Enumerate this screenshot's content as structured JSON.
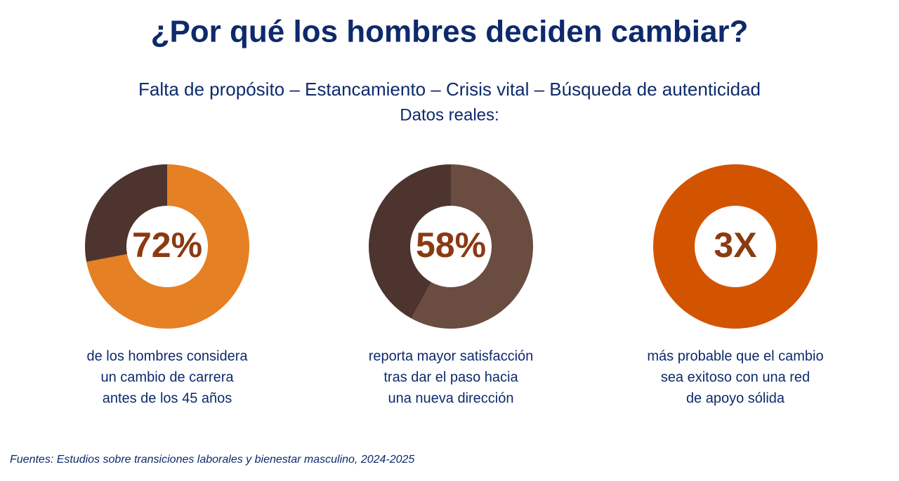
{
  "title": "¿Por qué los hombres deciden cambiar?",
  "subtitle": "Falta de propósito – Estancamiento – Crisis vital – Búsqueda de autenticidad",
  "intro": "Datos reales:",
  "source": "Fuentes: Estudios sobre transiciones laborales y bienestar masculino, 2024-2025",
  "chart_data": [
    {
      "type": "donut",
      "values": [
        72,
        28
      ],
      "value_labels": [
        "72%",
        null
      ],
      "colors": [
        "#e58024",
        "#4e342e"
      ],
      "caption": [
        "de los hombres considera",
        "un cambio de carrera",
        "antes de los 45 años"
      ]
    },
    {
      "type": "donut",
      "values": [
        58,
        42
      ],
      "value_labels": [
        "58%",
        null
      ],
      "colors": [
        "#6b4c41",
        "#4e342e"
      ],
      "caption": [
        "reporta mayor satisfacción",
        "tras dar el paso hacia",
        "una nueva dirección"
      ]
    },
    {
      "type": "donut",
      "values": [
        3
      ],
      "value_labels": [
        "3X"
      ],
      "colors": [
        "#d35400"
      ],
      "caption": [
        "más probable que el cambio",
        "sea exitoso con una red",
        "de apoyo sólida"
      ]
    }
  ]
}
